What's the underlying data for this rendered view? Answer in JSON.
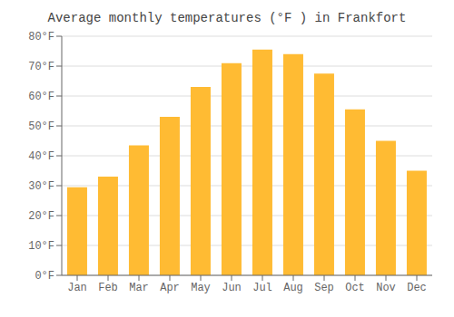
{
  "chart_data": {
    "type": "bar",
    "title": "Average monthly temperatures (°F ) in Frankfort",
    "categories": [
      "Jan",
      "Feb",
      "Mar",
      "Apr",
      "May",
      "Jun",
      "Jul",
      "Aug",
      "Sep",
      "Oct",
      "Nov",
      "Dec"
    ],
    "values": [
      29.5,
      33,
      43.5,
      53,
      63,
      71,
      75.5,
      74,
      67.5,
      55.5,
      45,
      35
    ],
    "color": "#FFBB33",
    "ylim": [
      0,
      80
    ],
    "yticks": [
      {
        "value": 0,
        "label": "0°F"
      },
      {
        "value": 10,
        "label": "10°F"
      },
      {
        "value": 20,
        "label": "20°F"
      },
      {
        "value": 30,
        "label": "30°F"
      },
      {
        "value": 40,
        "label": "40°F"
      },
      {
        "value": 50,
        "label": "50°F"
      },
      {
        "value": 60,
        "label": "60°F"
      },
      {
        "value": 70,
        "label": "70°F"
      },
      {
        "value": 80,
        "label": "80°F"
      }
    ],
    "grid": true
  }
}
